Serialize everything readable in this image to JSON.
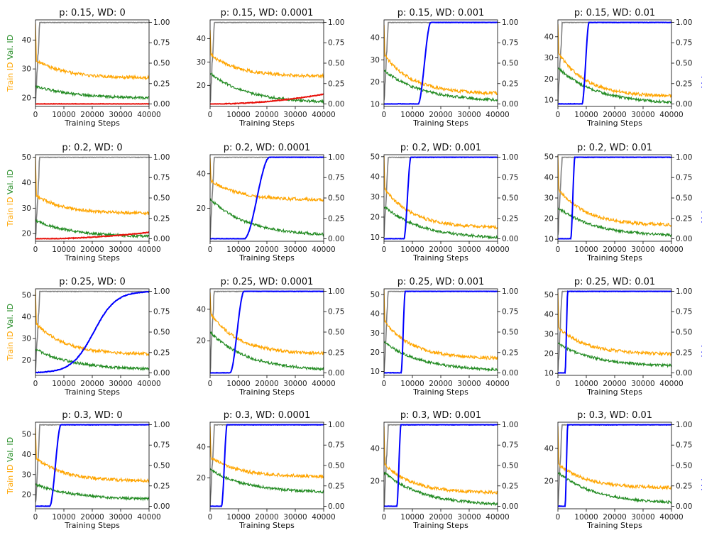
{
  "figure": {
    "xlabel": "Training Steps",
    "left_ylabel_parts": [
      {
        "text": "Train ID",
        "color": "#ffa500"
      },
      {
        "text": "Val. ID",
        "color": "#228b22"
      }
    ],
    "right_ylabel": {
      "text": "Val accuracy",
      "color": "#0000ff"
    },
    "colors": {
      "train_id": "#ffa500",
      "val_id": "#228b22",
      "train_acc": "#808080",
      "val_acc": "#0000ff",
      "val_acc_flat": "#e8120c"
    }
  },
  "chart_data": [
    {
      "type": "line",
      "title": "p: 0.15, WD: 0",
      "row": 0,
      "col": 0,
      "xlim": [
        0,
        40000
      ],
      "x_ticks": [
        0,
        10000,
        20000,
        30000,
        40000
      ],
      "ylim": [
        17,
        47
      ],
      "y_ticks": [
        20,
        30,
        40
      ],
      "y2lim": [
        -0.03,
        1.03
      ],
      "y2_ticks": [
        0.0,
        0.25,
        0.5,
        0.75,
        1.0
      ],
      "y2_tick_labels": [
        "0.00",
        "0.25",
        "0.50",
        "0.75",
        "1.00"
      ],
      "show_left_ylabel": true,
      "show_right_ylabel": false,
      "val_acc_color": "red",
      "train_id": {
        "start": 46,
        "bump": 33,
        "end": 27
      },
      "val_id": {
        "start": 24,
        "end": 20
      },
      "train_acc_rise_step": 1500,
      "val_acc": {
        "type": "flat",
        "start": 0.0,
        "end": 0.0
      }
    },
    {
      "type": "line",
      "title": "p: 0.15, WD: 0.0001",
      "row": 0,
      "col": 1,
      "xlim": [
        0,
        40000
      ],
      "x_ticks": [
        0,
        10000,
        20000,
        30000,
        40000
      ],
      "ylim": [
        11,
        48
      ],
      "y_ticks": [
        20,
        30,
        40
      ],
      "y2lim": [
        -0.03,
        1.03
      ],
      "y2_ticks": [
        0.0,
        0.25,
        0.5,
        0.75,
        1.0
      ],
      "y2_tick_labels": [
        "0.00",
        "0.25",
        "0.50",
        "0.75",
        "1.00"
      ],
      "show_left_ylabel": false,
      "show_right_ylabel": false,
      "val_acc_color": "red",
      "train_id": {
        "start": 44,
        "bump": 33,
        "end": 24
      },
      "val_id": {
        "start": 25,
        "end": 13
      },
      "train_acc_rise_step": 1500,
      "val_acc": {
        "type": "flat",
        "start": 0.0,
        "end": 0.12
      }
    },
    {
      "type": "line",
      "title": "p: 0.15, WD: 0.001",
      "row": 0,
      "col": 2,
      "xlim": [
        0,
        40000
      ],
      "x_ticks": [
        0,
        10000,
        20000,
        30000,
        40000
      ],
      "ylim": [
        9,
        48
      ],
      "y_ticks": [
        10,
        20,
        30,
        40
      ],
      "y2lim": [
        -0.03,
        1.03
      ],
      "y2_ticks": [
        0.0,
        0.25,
        0.5,
        0.75,
        1.0
      ],
      "y2_tick_labels": [
        "0.00",
        "0.25",
        "0.50",
        "0.75",
        "1.00"
      ],
      "show_left_ylabel": false,
      "show_right_ylabel": false,
      "val_acc_color": "blue",
      "train_id": {
        "start": 46,
        "bump": 32,
        "end": 15
      },
      "val_id": {
        "start": 25,
        "end": 12
      },
      "train_acc_rise_step": 1500,
      "val_acc": {
        "type": "rise",
        "start_step": 12000,
        "end_step": 16500
      }
    },
    {
      "type": "line",
      "title": "p: 0.15, WD: 0.01",
      "row": 0,
      "col": 3,
      "xlim": [
        0,
        40000
      ],
      "x_ticks": [
        0,
        10000,
        20000,
        30000,
        40000
      ],
      "ylim": [
        7,
        48
      ],
      "y_ticks": [
        10,
        20,
        30,
        40
      ],
      "y2lim": [
        -0.03,
        1.03
      ],
      "y2_ticks": [
        0.0,
        0.25,
        0.5,
        0.75,
        1.0
      ],
      "y2_tick_labels": [
        "0.00",
        "0.25",
        "0.50",
        "0.75",
        "1.00"
      ],
      "show_left_ylabel": false,
      "show_right_ylabel": true,
      "val_acc_color": "blue",
      "train_id": {
        "start": 46,
        "bump": 32,
        "end": 12
      },
      "val_id": {
        "start": 25,
        "end": 9
      },
      "train_acc_rise_step": 1500,
      "val_acc": {
        "type": "rise",
        "start_step": 8500,
        "end_step": 11000
      }
    },
    {
      "type": "line",
      "title": "p: 0.2, WD: 0",
      "row": 1,
      "col": 0,
      "xlim": [
        0,
        40000
      ],
      "x_ticks": [
        0,
        10000,
        20000,
        30000,
        40000
      ],
      "ylim": [
        17,
        51
      ],
      "y_ticks": [
        20,
        30,
        40,
        50
      ],
      "y2lim": [
        -0.03,
        1.03
      ],
      "y2_ticks": [
        0.0,
        0.25,
        0.5,
        0.75,
        1.0
      ],
      "y2_tick_labels": [
        "0.00",
        "0.25",
        "0.50",
        "0.75",
        "1.00"
      ],
      "show_left_ylabel": true,
      "show_right_ylabel": false,
      "val_acc_color": "red",
      "train_id": {
        "start": 50,
        "bump": 35,
        "end": 28
      },
      "val_id": {
        "start": 25,
        "end": 19
      },
      "train_acc_rise_step": 1500,
      "val_acc": {
        "type": "flat",
        "start": 0.0,
        "end": 0.08
      }
    },
    {
      "type": "line",
      "title": "p: 0.2, WD: 0.0001",
      "row": 1,
      "col": 1,
      "xlim": [
        0,
        40000
      ],
      "x_ticks": [
        0,
        10000,
        20000,
        30000,
        40000
      ],
      "ylim": [
        1,
        51
      ],
      "y_ticks": [
        20,
        40
      ],
      "y2lim": [
        -0.03,
        1.03
      ],
      "y2_ticks": [
        0.0,
        0.25,
        0.5,
        0.75,
        1.0
      ],
      "y2_tick_labels": [
        "0.00",
        "0.25",
        "0.50",
        "0.75",
        "1.00"
      ],
      "show_left_ylabel": false,
      "show_right_ylabel": false,
      "val_acc_color": "blue",
      "train_id": {
        "start": 49,
        "bump": 36,
        "end": 25
      },
      "val_id": {
        "start": 25,
        "end": 5
      },
      "train_acc_rise_step": 1500,
      "val_acc": {
        "type": "rise",
        "start_step": 12000,
        "end_step": 21000
      }
    },
    {
      "type": "line",
      "title": "p: 0.2, WD: 0.001",
      "row": 1,
      "col": 2,
      "xlim": [
        0,
        40000
      ],
      "x_ticks": [
        0,
        10000,
        20000,
        30000,
        40000
      ],
      "ylim": [
        8,
        51
      ],
      "y_ticks": [
        10,
        20,
        30,
        40,
        50
      ],
      "y2lim": [
        -0.03,
        1.03
      ],
      "y2_ticks": [
        0.0,
        0.25,
        0.5,
        0.75,
        1.0
      ],
      "y2_tick_labels": [
        "0.00",
        "0.25",
        "0.50",
        "0.75",
        "1.00"
      ],
      "show_left_ylabel": false,
      "show_right_ylabel": false,
      "val_acc_color": "blue",
      "train_id": {
        "start": 50,
        "bump": 34,
        "end": 15
      },
      "val_id": {
        "start": 25,
        "end": 10
      },
      "train_acc_rise_step": 1500,
      "val_acc": {
        "type": "rise",
        "start_step": 7000,
        "end_step": 9500
      }
    },
    {
      "type": "line",
      "title": "p: 0.2, WD: 0.01",
      "row": 1,
      "col": 3,
      "xlim": [
        0,
        40000
      ],
      "x_ticks": [
        0,
        10000,
        20000,
        30000,
        40000
      ],
      "ylim": [
        9,
        51
      ],
      "y_ticks": [
        10,
        20,
        30,
        40,
        50
      ],
      "y2lim": [
        -0.03,
        1.03
      ],
      "y2_ticks": [
        0.0,
        0.25,
        0.5,
        0.75,
        1.0
      ],
      "y2_tick_labels": [
        "0.00",
        "0.25",
        "0.50",
        "0.75",
        "1.00"
      ],
      "show_left_ylabel": false,
      "show_right_ylabel": true,
      "val_acc_color": "blue",
      "train_id": {
        "start": 50,
        "bump": 34,
        "end": 17
      },
      "val_id": {
        "start": 25,
        "end": 12
      },
      "train_acc_rise_step": 1500,
      "val_acc": {
        "type": "rise",
        "start_step": 4500,
        "end_step": 6000
      }
    },
    {
      "type": "line",
      "title": "p: 0.25, WD: 0",
      "row": 2,
      "col": 0,
      "xlim": [
        0,
        40000
      ],
      "x_ticks": [
        0,
        10000,
        20000,
        30000,
        40000
      ],
      "ylim": [
        13,
        53
      ],
      "y_ticks": [
        20,
        30,
        40,
        50
      ],
      "y2lim": [
        -0.03,
        1.03
      ],
      "y2_ticks": [
        0.0,
        0.25,
        0.5,
        0.75,
        1.0
      ],
      "y2_tick_labels": [
        "0.00",
        "0.25",
        "0.50",
        "0.75",
        "1.00"
      ],
      "show_left_ylabel": true,
      "show_right_ylabel": false,
      "val_acc_color": "blue",
      "train_id": {
        "start": 52,
        "bump": 37,
        "end": 23
      },
      "val_id": {
        "start": 25,
        "end": 16
      },
      "train_acc_rise_step": 1500,
      "val_acc": {
        "type": "sigmoid",
        "start_step": 5000,
        "end_step": 36000
      }
    },
    {
      "type": "line",
      "title": "p: 0.25, WD: 0.0001",
      "row": 2,
      "col": 1,
      "xlim": [
        0,
        40000
      ],
      "x_ticks": [
        0,
        10000,
        20000,
        30000,
        40000
      ],
      "ylim": [
        -2,
        53
      ],
      "y_ticks": [
        20,
        40
      ],
      "y2lim": [
        -0.03,
        1.03
      ],
      "y2_ticks": [
        0.0,
        0.25,
        0.5,
        0.75,
        1.0
      ],
      "y2_tick_labels": [
        "0.00",
        "0.25",
        "0.50",
        "0.75",
        "1.00"
      ],
      "show_left_ylabel": false,
      "show_right_ylabel": false,
      "val_acc_color": "blue",
      "train_id": {
        "start": 50,
        "bump": 37,
        "end": 12
      },
      "val_id": {
        "start": 25,
        "end": 2
      },
      "train_acc_rise_step": 1500,
      "val_acc": {
        "type": "rise",
        "start_step": 7000,
        "end_step": 12000
      }
    },
    {
      "type": "line",
      "title": "p: 0.25, WD: 0.001",
      "row": 2,
      "col": 2,
      "xlim": [
        0,
        40000
      ],
      "x_ticks": [
        0,
        10000,
        20000,
        30000,
        40000
      ],
      "ylim": [
        8,
        53
      ],
      "y_ticks": [
        10,
        20,
        30,
        40,
        50
      ],
      "y2lim": [
        -0.03,
        1.03
      ],
      "y2_ticks": [
        0.0,
        0.25,
        0.5,
        0.75,
        1.0
      ],
      "y2_tick_labels": [
        "0.00",
        "0.25",
        "0.50",
        "0.75",
        "1.00"
      ],
      "show_left_ylabel": false,
      "show_right_ylabel": false,
      "val_acc_color": "blue",
      "train_id": {
        "start": 52,
        "bump": 36,
        "end": 17
      },
      "val_id": {
        "start": 25,
        "end": 11
      },
      "train_acc_rise_step": 1500,
      "val_acc": {
        "type": "rise",
        "start_step": 6000,
        "end_step": 7500
      }
    },
    {
      "type": "line",
      "title": "p: 0.25, WD: 0.01",
      "row": 2,
      "col": 3,
      "xlim": [
        0,
        40000
      ],
      "x_ticks": [
        0,
        10000,
        20000,
        30000,
        40000
      ],
      "ylim": [
        9,
        53
      ],
      "y_ticks": [
        10,
        20,
        30,
        40,
        50
      ],
      "y2lim": [
        -0.03,
        1.03
      ],
      "y2_ticks": [
        0.0,
        0.25,
        0.5,
        0.75,
        1.0
      ],
      "y2_tick_labels": [
        "0.00",
        "0.25",
        "0.50",
        "0.75",
        "1.00"
      ],
      "show_left_ylabel": false,
      "show_right_ylabel": true,
      "val_acc_color": "blue",
      "train_id": {
        "start": 52,
        "bump": 33,
        "end": 20
      },
      "val_id": {
        "start": 25,
        "end": 14
      },
      "train_acc_rise_step": 1500,
      "val_acc": {
        "type": "rise",
        "start_step": 2500,
        "end_step": 3500
      }
    },
    {
      "type": "line",
      "title": "p: 0.3, WD: 0",
      "row": 3,
      "col": 0,
      "xlim": [
        0,
        40000
      ],
      "x_ticks": [
        0,
        10000,
        20000,
        30000,
        40000
      ],
      "ylim": [
        13,
        56
      ],
      "y_ticks": [
        20,
        30,
        40,
        50
      ],
      "y2lim": [
        -0.03,
        1.03
      ],
      "y2_ticks": [
        0.0,
        0.25,
        0.5,
        0.75,
        1.0
      ],
      "y2_tick_labels": [
        "0.00",
        "0.25",
        "0.50",
        "0.75",
        "1.00"
      ],
      "show_left_ylabel": true,
      "show_right_ylabel": false,
      "val_acc_color": "blue",
      "train_id": {
        "start": 54,
        "bump": 38,
        "end": 27
      },
      "val_id": {
        "start": 25,
        "end": 18
      },
      "train_acc_rise_step": 1500,
      "val_acc": {
        "type": "rise",
        "start_step": 5000,
        "end_step": 9000
      }
    },
    {
      "type": "line",
      "title": "p: 0.3, WD: 0.0001",
      "row": 3,
      "col": 1,
      "xlim": [
        0,
        40000
      ],
      "x_ticks": [
        0,
        10000,
        20000,
        30000,
        40000
      ],
      "ylim": [
        0,
        56
      ],
      "y_ticks": [
        20,
        40
      ],
      "y2lim": [
        -0.03,
        1.03
      ],
      "y2_ticks": [
        0.0,
        0.25,
        0.5,
        0.75,
        1.0
      ],
      "y2_tick_labels": [
        "0.00",
        "0.25",
        "0.50",
        "0.75",
        "1.00"
      ],
      "show_left_ylabel": false,
      "show_right_ylabel": false,
      "val_acc_color": "blue",
      "train_id": {
        "start": 54,
        "bump": 33,
        "end": 21
      },
      "val_id": {
        "start": 25,
        "end": 11
      },
      "train_acc_rise_step": 1500,
      "val_acc": {
        "type": "rise",
        "start_step": 4000,
        "end_step": 6000
      }
    },
    {
      "type": "line",
      "title": "p: 0.3, WD: 0.001",
      "row": 3,
      "col": 2,
      "xlim": [
        0,
        40000
      ],
      "x_ticks": [
        0,
        10000,
        20000,
        30000,
        40000
      ],
      "ylim": [
        3,
        56
      ],
      "y_ticks": [
        20,
        40
      ],
      "y2lim": [
        -0.03,
        1.03
      ],
      "y2_ticks": [
        0.0,
        0.25,
        0.5,
        0.75,
        1.0
      ],
      "y2_tick_labels": [
        "0.00",
        "0.25",
        "0.50",
        "0.75",
        "1.00"
      ],
      "show_left_ylabel": false,
      "show_right_ylabel": false,
      "val_acc_color": "blue",
      "train_id": {
        "start": 54,
        "bump": 30,
        "end": 13
      },
      "val_id": {
        "start": 25,
        "end": 6
      },
      "train_acc_rise_step": 1500,
      "val_acc": {
        "type": "rise",
        "start_step": 4500,
        "end_step": 6000
      }
    },
    {
      "type": "line",
      "title": "p: 0.3, WD: 0.01",
      "row": 3,
      "col": 3,
      "xlim": [
        0,
        40000
      ],
      "x_ticks": [
        0,
        10000,
        20000,
        30000,
        40000
      ],
      "ylim": [
        3,
        56
      ],
      "y_ticks": [
        20,
        40
      ],
      "y2lim": [
        -0.03,
        1.03
      ],
      "y2_ticks": [
        0.0,
        0.25,
        0.5,
        0.75,
        1.0
      ],
      "y2_tick_labels": [
        "0.00",
        "0.25",
        "0.50",
        "0.75",
        "1.00"
      ],
      "show_left_ylabel": false,
      "show_right_ylabel": true,
      "val_acc_color": "blue",
      "train_id": {
        "start": 54,
        "bump": 30,
        "end": 16
      },
      "val_id": {
        "start": 25,
        "end": 7
      },
      "train_acc_rise_step": 1500,
      "val_acc": {
        "type": "rise",
        "start_step": 2500,
        "end_step": 3500
      }
    }
  ]
}
